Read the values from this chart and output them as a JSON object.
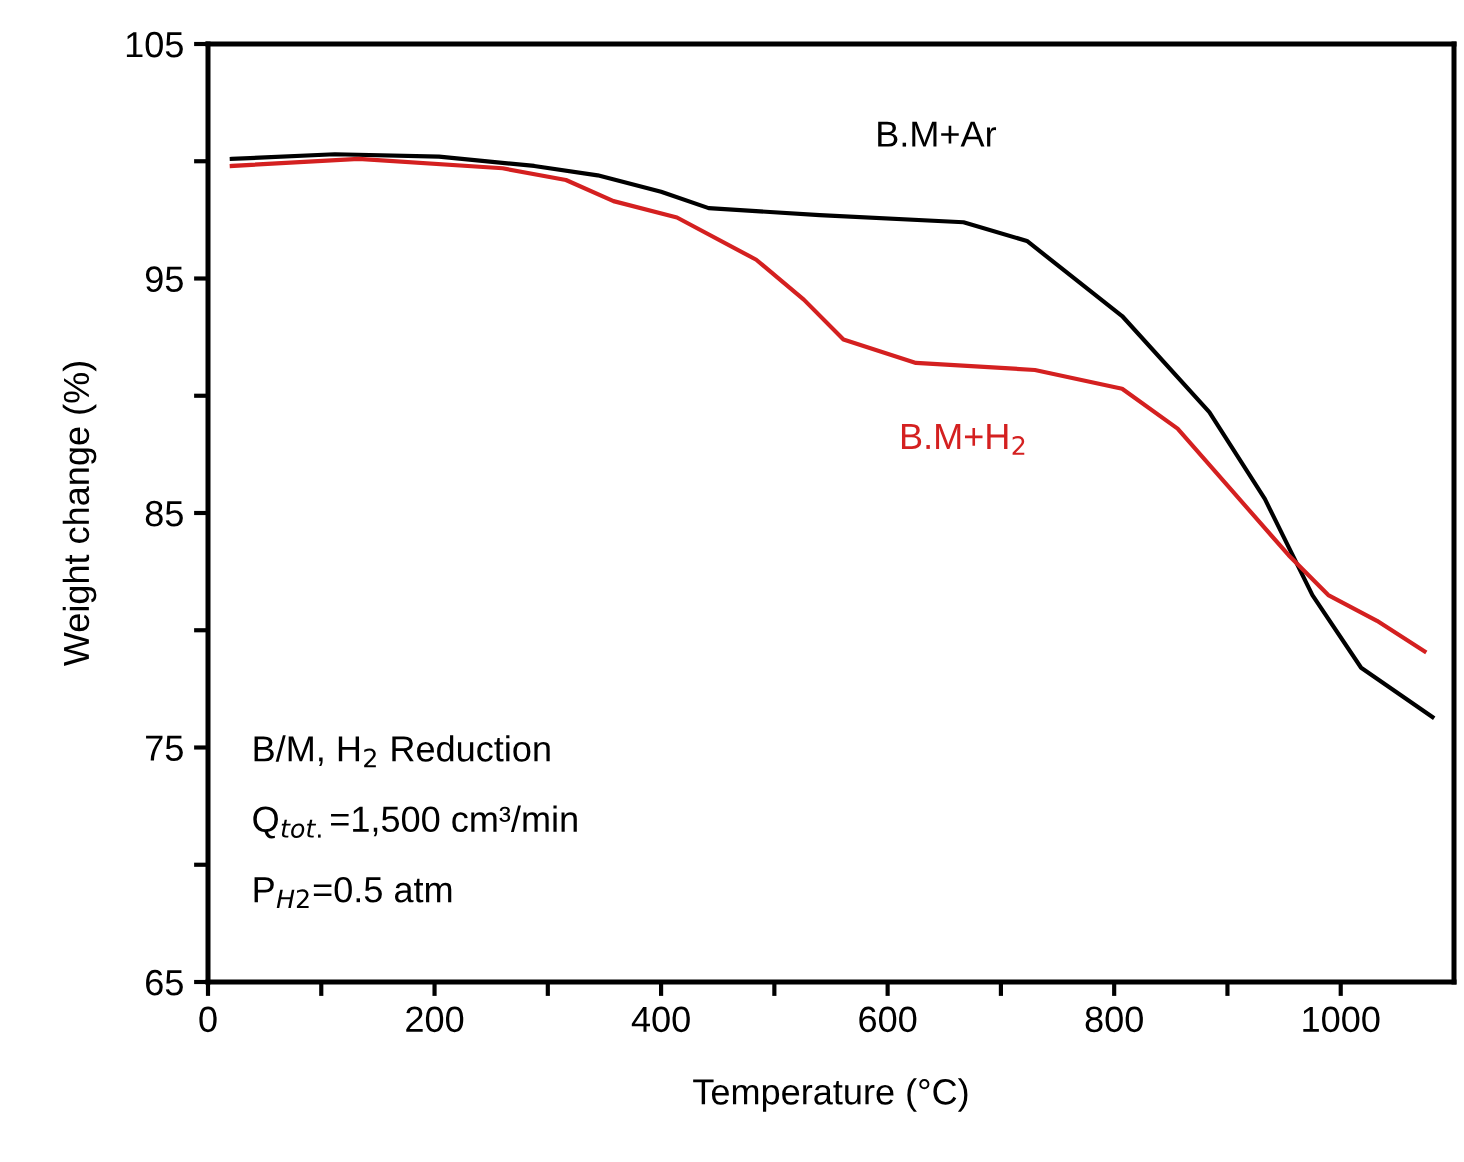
{
  "chart_data": {
    "type": "line",
    "xlabel": "Temperature (°C)",
    "ylabel": "Weight change (%)",
    "xlim": [
      0,
      1100
    ],
    "ylim": [
      65,
      105
    ],
    "xticks": [
      0,
      {
        "value": 100,
        "label": null
      },
      200,
      {
        "value": 300,
        "label": null
      },
      400,
      {
        "value": 500,
        "label": null
      },
      600,
      {
        "value": 700,
        "label": null
      },
      800,
      {
        "value": 900,
        "label": null
      },
      1000
    ],
    "yticks": [
      65,
      {
        "value": 70,
        "label": null
      },
      75,
      {
        "value": 80,
        "label": null
      },
      85,
      {
        "value": 90,
        "label": null
      },
      95,
      {
        "value": 100,
        "label": null
      },
      105
    ],
    "grid": false,
    "legend": false,
    "marker": "none",
    "line_style": "solid",
    "series": [
      {
        "name": "B.M+Ar",
        "color": "#000000",
        "x": [
          21,
          112,
          204,
          288,
          344,
          400,
          442,
          540,
          667,
          723,
          807,
          884,
          933,
          975,
          1018,
          1081
        ],
        "values": [
          100.1,
          100.3,
          100.2,
          99.8,
          99.4,
          98.7,
          98.0,
          97.7,
          97.4,
          96.6,
          93.4,
          89.3,
          85.6,
          81.5,
          78.4,
          76.3
        ]
      },
      {
        "name": "B.M+H$_{2}$",
        "color": "#d42020",
        "x": [
          21,
          133,
          260,
          316,
          358,
          414,
          484,
          526,
          561,
          625,
          730,
          807,
          856,
          905,
          954,
          989,
          1032,
          1074
        ],
        "values": [
          99.8,
          100.1,
          99.7,
          99.2,
          98.3,
          97.6,
          95.8,
          94.1,
          92.4,
          91.4,
          91.1,
          90.3,
          88.6,
          85.9,
          83.2,
          81.5,
          80.4,
          79.1
        ]
      }
    ],
    "annotations": [
      "B/M, H$_{2}$ Reduction",
      "Q$_{tot.}$=1,500 cm³/min",
      "P$_{H2}$=0.5 atm"
    ]
  }
}
